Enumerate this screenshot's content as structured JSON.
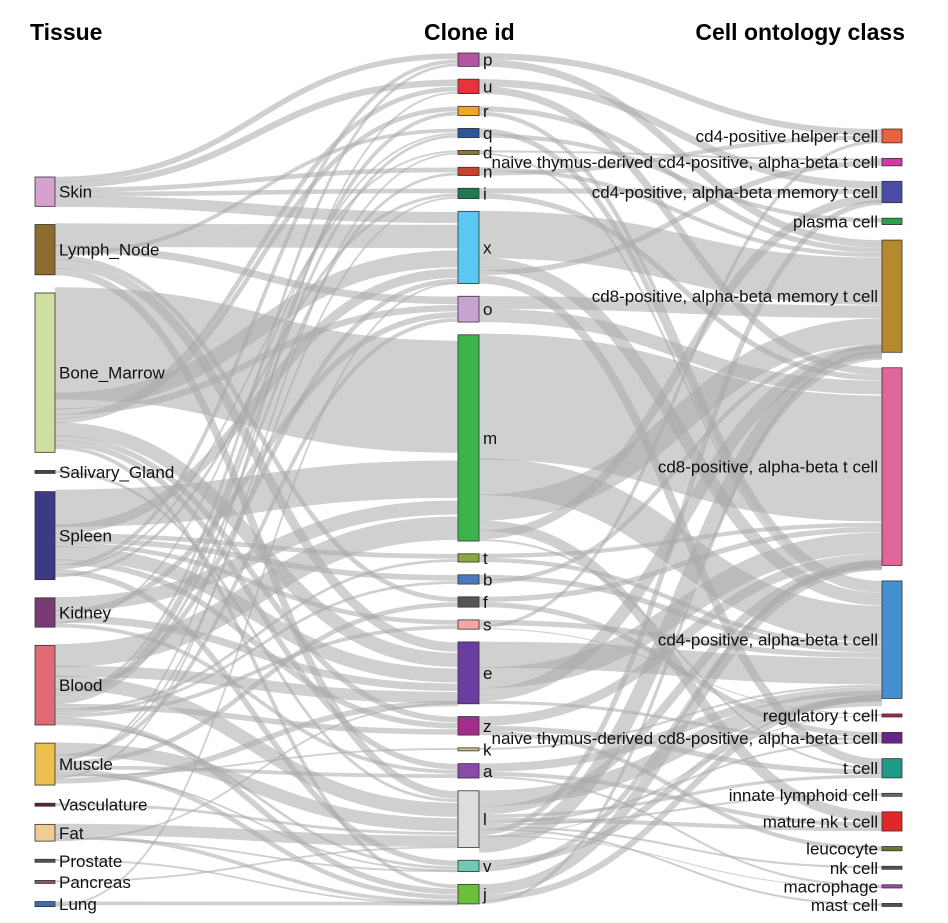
{
  "chart_data": {
    "type": "sankey",
    "columns": [
      {
        "key": "tissue",
        "title": "Tissue"
      },
      {
        "key": "clone",
        "title": "Clone id"
      },
      {
        "key": "cell",
        "title": "Cell ontology class"
      }
    ],
    "nodes": {
      "tissue": [
        {
          "id": "Skin",
          "label": "Skin",
          "color": "#d7a1ce",
          "weight": 3.5
        },
        {
          "id": "Lymph_Node",
          "label": "Lymph_Node",
          "color": "#8b6b2e",
          "weight": 6
        },
        {
          "id": "Bone_Marrow",
          "label": "Bone_Marrow",
          "color": "#cfdf9f",
          "weight": 19
        },
        {
          "id": "Salivary_Gland",
          "label": "Salivary_Gland",
          "color": "#444444",
          "weight": 0.3
        },
        {
          "id": "Spleen",
          "label": "Spleen",
          "color": "#3b3a82",
          "weight": 10.5
        },
        {
          "id": "Kidney",
          "label": "Kidney",
          "color": "#7a3a74",
          "weight": 3.5
        },
        {
          "id": "Blood",
          "label": "Blood",
          "color": "#df6a75",
          "weight": 9.5
        },
        {
          "id": "Muscle",
          "label": "Muscle",
          "color": "#e9bf4e",
          "weight": 5
        },
        {
          "id": "Vasculature",
          "label": "Vasculature",
          "color": "#5a2430",
          "weight": 0.3
        },
        {
          "id": "Fat",
          "label": "Fat",
          "color": "#f0cc93",
          "weight": 2
        },
        {
          "id": "Prostate",
          "label": "Prostate",
          "color": "#555555",
          "weight": 0.2
        },
        {
          "id": "Pancreas",
          "label": "Pancreas",
          "color": "#8a5a5a",
          "weight": 0.2
        },
        {
          "id": "Lung",
          "label": "Lung",
          "color": "#3a6fb0",
          "weight": 0.6
        }
      ],
      "clone": [
        {
          "id": "p",
          "label": "p",
          "color": "#b5549f",
          "weight": 1.3
        },
        {
          "id": "u",
          "label": "u",
          "color": "#e8333c",
          "weight": 1.4
        },
        {
          "id": "r",
          "label": "r",
          "color": "#f2a526",
          "weight": 0.9
        },
        {
          "id": "q",
          "label": "q",
          "color": "#2e5795",
          "weight": 0.9
        },
        {
          "id": "d",
          "label": "d",
          "color": "#8e7735",
          "weight": 0.4
        },
        {
          "id": "n",
          "label": "n",
          "color": "#c8422e",
          "weight": 0.8
        },
        {
          "id": "i",
          "label": "i",
          "color": "#1f7a52",
          "weight": 1.0
        },
        {
          "id": "x",
          "label": "x",
          "color": "#5ac8f0",
          "weight": 7
        },
        {
          "id": "o",
          "label": "o",
          "color": "#c7a3d1",
          "weight": 2.5
        },
        {
          "id": "m",
          "label": "m",
          "color": "#3ab54a",
          "weight": 20
        },
        {
          "id": "t",
          "label": "t",
          "color": "#8ba63a",
          "weight": 0.8
        },
        {
          "id": "b",
          "label": "b",
          "color": "#4a7ac0",
          "weight": 0.9
        },
        {
          "id": "f",
          "label": "f",
          "color": "#555555",
          "weight": 1.0
        },
        {
          "id": "s",
          "label": "s",
          "color": "#f3a6a6",
          "weight": 0.9
        },
        {
          "id": "e",
          "label": "e",
          "color": "#6a3ea0",
          "weight": 6
        },
        {
          "id": "z",
          "label": "z",
          "color": "#a62c8a",
          "weight": 1.8
        },
        {
          "id": "k",
          "label": "k",
          "color": "#c9c28a",
          "weight": 0.2
        },
        {
          "id": "a",
          "label": "a",
          "color": "#8a4aa8",
          "weight": 1.4
        },
        {
          "id": "l",
          "label": "l",
          "color": "#dddddd",
          "weight": 5.5
        },
        {
          "id": "v",
          "label": "v",
          "color": "#6fcab5",
          "weight": 1.1
        },
        {
          "id": "j",
          "label": "j",
          "color": "#6cbf3a",
          "weight": 1.9
        }
      ],
      "cell": [
        {
          "id": "cd4_helper",
          "label": "cd4-positive helper t cell",
          "color": "#e8603c",
          "weight": 1.3
        },
        {
          "id": "naive_cd4",
          "label": "naive thymus-derived cd4-positive, alpha-beta t cell",
          "color": "#d43aa5",
          "weight": 0.7
        },
        {
          "id": "cd4_memory",
          "label": "cd4-positive, alpha-beta memory t cell",
          "color": "#4c4ca6",
          "weight": 2.0
        },
        {
          "id": "plasma",
          "label": "plasma cell",
          "color": "#2aa24a",
          "weight": 0.6
        },
        {
          "id": "cd8_memory",
          "label": "cd8-positive, alpha-beta memory t cell",
          "color": "#b6892e",
          "weight": 10.5
        },
        {
          "id": "cd8",
          "label": "cd8-positive, alpha-beta t cell",
          "color": "#e0679a",
          "weight": 18.5
        },
        {
          "id": "cd4",
          "label": "cd4-positive, alpha-beta t cell",
          "color": "#4690d2",
          "weight": 11
        },
        {
          "id": "treg",
          "label": "regulatory t cell",
          "color": "#a8244a",
          "weight": 0.2
        },
        {
          "id": "naive_cd8",
          "label": "naive thymus-derived cd8-positive, alpha-beta t cell",
          "color": "#6a2388",
          "weight": 1.0
        },
        {
          "id": "tcell",
          "label": "t cell",
          "color": "#1d9a88",
          "weight": 1.8
        },
        {
          "id": "ilc",
          "label": "innate lymphoid cell",
          "color": "#6a6a6a",
          "weight": 0.2
        },
        {
          "id": "nkt",
          "label": "mature nk t cell",
          "color": "#e02828",
          "weight": 1.8
        },
        {
          "id": "leucocyte",
          "label": "leucocyte",
          "color": "#6a7a2a",
          "weight": 0.4
        },
        {
          "id": "nk",
          "label": "nk cell",
          "color": "#555555",
          "weight": 0.2
        },
        {
          "id": "macrophage",
          "label": "macrophage",
          "color": "#a24aa8",
          "weight": 0.3
        },
        {
          "id": "mast",
          "label": "mast cell",
          "color": "#555555",
          "weight": 0.2
        }
      ]
    },
    "links_tissue_clone": [
      [
        "Skin",
        "p",
        0.6
      ],
      [
        "Skin",
        "u",
        0.7
      ],
      [
        "Skin",
        "n",
        0.5
      ],
      [
        "Skin",
        "i",
        0.5
      ],
      [
        "Skin",
        "x",
        1.2
      ],
      [
        "Lymph_Node",
        "x",
        2.5
      ],
      [
        "Lymph_Node",
        "o",
        0.8
      ],
      [
        "Lymph_Node",
        "q",
        0.4
      ],
      [
        "Lymph_Node",
        "f",
        0.5
      ],
      [
        "Lymph_Node",
        "e",
        1.0
      ],
      [
        "Lymph_Node",
        "l",
        0.8
      ],
      [
        "Bone_Marrow",
        "m",
        12
      ],
      [
        "Bone_Marrow",
        "x",
        1.8
      ],
      [
        "Bone_Marrow",
        "o",
        0.7
      ],
      [
        "Bone_Marrow",
        "u",
        0.5
      ],
      [
        "Bone_Marrow",
        "r",
        0.5
      ],
      [
        "Bone_Marrow",
        "e",
        1.5
      ],
      [
        "Bone_Marrow",
        "z",
        0.6
      ],
      [
        "Bone_Marrow",
        "a",
        0.6
      ],
      [
        "Bone_Marrow",
        "j",
        0.4
      ],
      [
        "Salivary_Gland",
        "l",
        0.3
      ],
      [
        "Spleen",
        "m",
        4
      ],
      [
        "Spleen",
        "x",
        1.0
      ],
      [
        "Spleen",
        "t",
        0.5
      ],
      [
        "Spleen",
        "b",
        0.6
      ],
      [
        "Spleen",
        "s",
        0.5
      ],
      [
        "Spleen",
        "e",
        1.5
      ],
      [
        "Spleen",
        "z",
        0.6
      ],
      [
        "Spleen",
        "p",
        0.4
      ],
      [
        "Spleen",
        "d",
        0.2
      ],
      [
        "Spleen",
        "v",
        0.6
      ],
      [
        "Spleen",
        "i",
        0.3
      ],
      [
        "Kidney",
        "m",
        1.5
      ],
      [
        "Kidney",
        "o",
        0.6
      ],
      [
        "Kidney",
        "e",
        0.8
      ],
      [
        "Kidney",
        "q",
        0.2
      ],
      [
        "Kidney",
        "a",
        0.4
      ],
      [
        "Blood",
        "m",
        2.5
      ],
      [
        "Blood",
        "e",
        1.2
      ],
      [
        "Blood",
        "l",
        1.5
      ],
      [
        "Blood",
        "x",
        0.5
      ],
      [
        "Blood",
        "p",
        0.3
      ],
      [
        "Blood",
        "r",
        0.4
      ],
      [
        "Blood",
        "q",
        0.3
      ],
      [
        "Blood",
        "n",
        0.3
      ],
      [
        "Blood",
        "z",
        0.6
      ],
      [
        "Blood",
        "t",
        0.3
      ],
      [
        "Blood",
        "b",
        0.3
      ],
      [
        "Blood",
        "s",
        0.4
      ],
      [
        "Blood",
        "j",
        0.6
      ],
      [
        "Blood",
        "v",
        0.3
      ],
      [
        "Muscle",
        "l",
        1.4
      ],
      [
        "Muscle",
        "o",
        0.4
      ],
      [
        "Muscle",
        "i",
        0.2
      ],
      [
        "Muscle",
        "u",
        0.2
      ],
      [
        "Muscle",
        "f",
        0.5
      ],
      [
        "Muscle",
        "a",
        0.4
      ],
      [
        "Muscle",
        "j",
        0.5
      ],
      [
        "Muscle",
        "v",
        0.2
      ],
      [
        "Muscle",
        "k",
        0.2
      ],
      [
        "Muscle",
        "d",
        0.2
      ],
      [
        "Muscle",
        "e",
        0.6
      ],
      [
        "Vasculature",
        "l",
        0.3
      ],
      [
        "Fat",
        "l",
        1.2
      ],
      [
        "Fat",
        "j",
        0.4
      ],
      [
        "Fat",
        "v",
        0.2
      ],
      [
        "Fat",
        "e",
        0.2
      ],
      [
        "Prostate",
        "j",
        0.2
      ],
      [
        "Pancreas",
        "l",
        0.2
      ],
      [
        "Lung",
        "j",
        0.4
      ],
      [
        "Lung",
        "x",
        0.2
      ]
    ],
    "links_clone_cell": [
      [
        "p",
        "cd4_helper",
        0.6
      ],
      [
        "p",
        "cd8_memory",
        0.7
      ],
      [
        "u",
        "cd4_memory",
        0.7
      ],
      [
        "u",
        "cd8",
        0.7
      ],
      [
        "r",
        "cd8_memory",
        0.5
      ],
      [
        "r",
        "cd4",
        0.4
      ],
      [
        "q",
        "cd4",
        0.5
      ],
      [
        "q",
        "plasma",
        0.4
      ],
      [
        "d",
        "naive_cd4",
        0.2
      ],
      [
        "d",
        "cd4",
        0.2
      ],
      [
        "n",
        "cd8_memory",
        0.4
      ],
      [
        "n",
        "cd4_helper",
        0.4
      ],
      [
        "i",
        "cd4_memory",
        0.5
      ],
      [
        "i",
        "cd8",
        0.5
      ],
      [
        "x",
        "cd8_memory",
        4.5
      ],
      [
        "x",
        "cd4",
        1.2
      ],
      [
        "x",
        "naive_cd4",
        0.5
      ],
      [
        "x",
        "tcell",
        0.8
      ],
      [
        "o",
        "cd8_memory",
        1.2
      ],
      [
        "o",
        "cd8",
        1.3
      ],
      [
        "m",
        "cd8",
        12
      ],
      [
        "m",
        "cd4",
        3.5
      ],
      [
        "m",
        "cd8_memory",
        2.5
      ],
      [
        "m",
        "nkt",
        1.0
      ],
      [
        "m",
        "cd4_memory",
        0.8
      ],
      [
        "m",
        "tcell",
        0.2
      ],
      [
        "t",
        "cd8",
        0.4
      ],
      [
        "t",
        "cd4",
        0.4
      ],
      [
        "b",
        "cd4",
        0.5
      ],
      [
        "b",
        "cd8_memory",
        0.4
      ],
      [
        "f",
        "cd8",
        0.5
      ],
      [
        "f",
        "naive_cd8",
        0.5
      ],
      [
        "s",
        "cd4",
        0.5
      ],
      [
        "s",
        "cd4_helper",
        0.3
      ],
      [
        "s",
        "treg",
        0.1
      ],
      [
        "e",
        "cd4",
        2.5
      ],
      [
        "e",
        "cd8",
        2.0
      ],
      [
        "e",
        "cd8_memory",
        1.2
      ],
      [
        "e",
        "naive_cd8",
        0.3
      ],
      [
        "z",
        "cd8",
        0.9
      ],
      [
        "z",
        "tcell",
        0.5
      ],
      [
        "z",
        "leucocyte",
        0.4
      ],
      [
        "k",
        "cd4",
        0.2
      ],
      [
        "a",
        "cd4",
        0.8
      ],
      [
        "a",
        "nkt",
        0.4
      ],
      [
        "a",
        "macrophage",
        0.2
      ],
      [
        "l",
        "cd4",
        1.5
      ],
      [
        "l",
        "cd8",
        0.8
      ],
      [
        "l",
        "tcell",
        0.3
      ],
      [
        "l",
        "nkt",
        0.4
      ],
      [
        "l",
        "naive_cd8",
        0.2
      ],
      [
        "l",
        "ilc",
        0.2
      ],
      [
        "l",
        "nk",
        0.2
      ],
      [
        "l",
        "mast",
        0.2
      ],
      [
        "l",
        "cd4_memory",
        0.5
      ],
      [
        "l",
        "macrophage",
        0.1
      ],
      [
        "l",
        "treg",
        0.1
      ],
      [
        "l",
        "cd8_memory",
        1.5
      ],
      [
        "v",
        "cd4",
        0.6
      ],
      [
        "v",
        "cd8",
        0.5
      ],
      [
        "j",
        "cd8",
        1.0
      ],
      [
        "j",
        "cd4",
        0.6
      ],
      [
        "j",
        "cd8_memory",
        0.3
      ]
    ]
  }
}
